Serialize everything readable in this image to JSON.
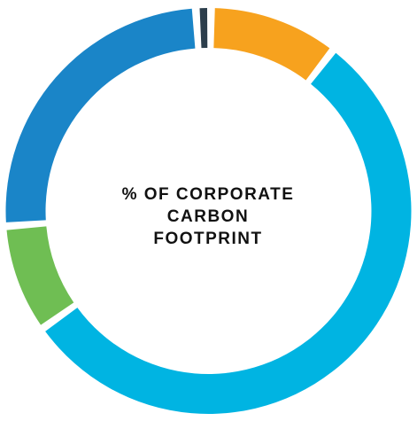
{
  "chart_data": {
    "type": "pie",
    "style": "donut",
    "title_lines": [
      "% OF CORPORATE",
      "CARBON",
      "FOOTPRINT"
    ],
    "slices": [
      {
        "value": 1.2,
        "color": "#2c3e4c"
      },
      {
        "value": 10.3,
        "color": "#f7a21e"
      },
      {
        "value": 54.7,
        "color": "#00b4e2"
      },
      {
        "value": 8.6,
        "color": "#6fbe53"
      },
      {
        "value": 25.2,
        "color": "#1a85c8"
      }
    ],
    "legend": "none"
  }
}
